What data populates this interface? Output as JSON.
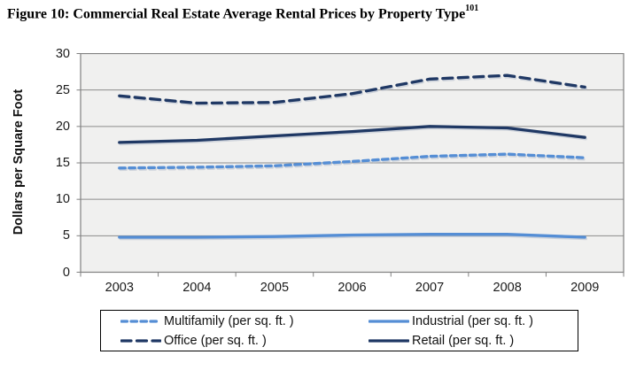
{
  "figure": {
    "title": "Figure 10: Commercial Real Estate Average Rental Prices by Property Type",
    "footnote_superscript": "101"
  },
  "chart_data": {
    "type": "line",
    "x": [
      "2003",
      "2004",
      "2005",
      "2006",
      "2007",
      "2008",
      "2009"
    ],
    "series": [
      {
        "name": "Multifamily (per sq. ft. )",
        "values": [
          14.3,
          14.4,
          14.6,
          15.2,
          15.9,
          16.2,
          15.7
        ],
        "color": "#558ED5",
        "dash": "short"
      },
      {
        "name": "Industrial (per sq. ft. )",
        "values": [
          4.8,
          4.8,
          4.9,
          5.1,
          5.2,
          5.2,
          4.8
        ],
        "color": "#558ED5",
        "dash": "solid"
      },
      {
        "name": "Office (per sq. ft. )",
        "values": [
          24.2,
          23.2,
          23.3,
          24.5,
          26.5,
          27.0,
          25.4
        ],
        "color": "#1F3864",
        "dash": "long"
      },
      {
        "name": "Retail (per sq. ft. )",
        "values": [
          17.8,
          18.1,
          18.7,
          19.3,
          20.0,
          19.8,
          18.5
        ],
        "color": "#1F3864",
        "dash": "solid"
      }
    ],
    "title": "",
    "xlabel": "",
    "ylabel": "Dollars per Square Foot",
    "ylim": [
      0,
      30
    ],
    "yticks": [
      0,
      5,
      10,
      15,
      20,
      25,
      30
    ],
    "grid": true,
    "legend_position": "bottom",
    "legend_columns": 2
  },
  "colors": {
    "light_blue": "#558ED5",
    "dark_navy": "#1F3864",
    "plot_background": "#F0F0EF",
    "gridline": "#8C8C8C",
    "axis_border": "#808080",
    "line_shadow": "#B9C2CE",
    "legend_border": "#000000",
    "page_background": "#FFFFFF",
    "text": "#000000"
  }
}
